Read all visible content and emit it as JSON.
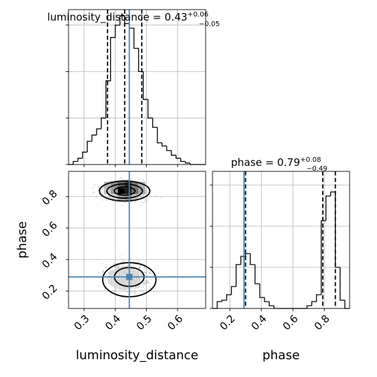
{
  "chart_data": {
    "type": "corner",
    "parameters": [
      "luminosity_distance",
      "phase"
    ],
    "truth": {
      "luminosity_distance": 0.445,
      "phase": 0.29
    },
    "axis_labels": {
      "x_left": "luminosity_distance",
      "x_right": "phase",
      "y_lower": "phase"
    },
    "panels": {
      "luminosity_distance_hist": {
        "title_prefix": "luminosity_distance = 0.43",
        "title_sup": "+0.06",
        "title_sub": "−0.05",
        "xlim": [
          0.25,
          0.69
        ],
        "ylim": [
          0,
          1
        ],
        "quantiles": [
          0.375,
          0.43,
          0.485
        ],
        "bin_edges": [
          0.25,
          0.265,
          0.28,
          0.295,
          0.31,
          0.325,
          0.34,
          0.355,
          0.37,
          0.385,
          0.4,
          0.415,
          0.43,
          0.445,
          0.46,
          0.475,
          0.49,
          0.505,
          0.52,
          0.535,
          0.55,
          0.565,
          0.58,
          0.595,
          0.61,
          0.625,
          0.64,
          0.655,
          0.67,
          0.69
        ],
        "counts": [
          0.0,
          0.02,
          0.04,
          0.08,
          0.15,
          0.19,
          0.23,
          0.3,
          0.54,
          0.82,
          0.9,
          0.96,
          0.91,
          0.88,
          0.75,
          0.6,
          0.42,
          0.3,
          0.24,
          0.14,
          0.12,
          0.09,
          0.06,
          0.04,
          0.02,
          0.01,
          0.0,
          0.0,
          0.0
        ],
        "x_ticks": [
          0.3,
          0.4,
          0.5,
          0.6
        ],
        "y_ticks": [
          0.0,
          0.3,
          0.6,
          0.9
        ]
      },
      "luminosity_distance_vs_phase": {
        "xlim": [
          0.25,
          0.69
        ],
        "ylim": [
          0.09,
          0.96
        ],
        "x_ticks": [
          0.3,
          0.4,
          0.5,
          0.6
        ],
        "x_tick_labels": [
          "0.3",
          "0.4",
          "0.5",
          "0.6"
        ],
        "y_ticks": [
          0.2,
          0.4,
          0.6,
          0.8
        ],
        "y_tick_labels": [
          "0.2",
          "0.4",
          "0.6",
          "0.8"
        ],
        "modes": [
          {
            "center": [
              0.43,
              0.835
            ],
            "width": 0.095,
            "height": 0.075
          },
          {
            "center": [
              0.445,
              0.29
            ],
            "width": 0.095,
            "height": 0.12
          }
        ]
      },
      "phase_hist": {
        "title_prefix": "phase = 0.79",
        "title_sup": "+0.08",
        "title_sub": "−0.49",
        "xlim": [
          0.09,
          0.96
        ],
        "ylim": [
          0,
          1
        ],
        "quantiles": [
          0.3,
          0.79,
          0.87
        ],
        "bin_edges": [
          0.09,
          0.12,
          0.15,
          0.18,
          0.21,
          0.24,
          0.27,
          0.3,
          0.33,
          0.36,
          0.39,
          0.42,
          0.45,
          0.48,
          0.51,
          0.54,
          0.57,
          0.6,
          0.63,
          0.66,
          0.69,
          0.72,
          0.75,
          0.78,
          0.81,
          0.84,
          0.87,
          0.9,
          0.93,
          0.96
        ],
        "counts": [
          0.0,
          0.05,
          0.06,
          0.1,
          0.16,
          0.32,
          0.38,
          0.4,
          0.32,
          0.18,
          0.08,
          0.05,
          0.02,
          0.0,
          0.0,
          0.0,
          0.0,
          0.0,
          0.0,
          0.0,
          0.02,
          0.05,
          0.1,
          0.64,
          0.82,
          0.85,
          0.3,
          0.06,
          0.0
        ],
        "x_ticks": [
          0.2,
          0.4,
          0.6,
          0.8
        ],
        "x_tick_labels": [
          "0.2",
          "0.4",
          "0.6",
          "0.8"
        ],
        "y_ticks": [
          0.0,
          0.3,
          0.6,
          0.9
        ]
      }
    }
  }
}
